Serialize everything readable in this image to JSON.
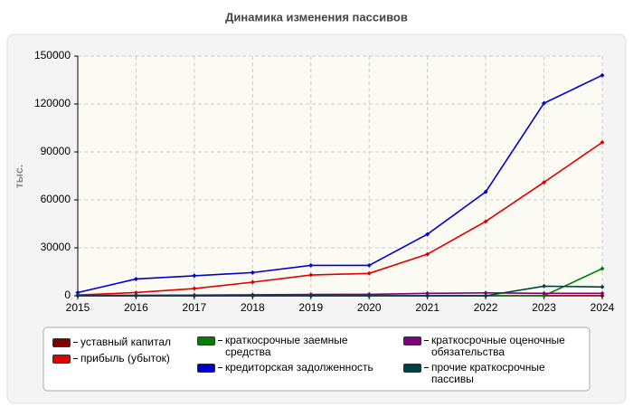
{
  "chart_data": {
    "type": "line",
    "title": "Динамика изменения пассивов",
    "y_label": "тыс.",
    "x": [
      2015,
      2016,
      2017,
      2018,
      2019,
      2020,
      2021,
      2022,
      2023,
      2024
    ],
    "xlim": [
      2015,
      2024
    ],
    "xticks": [
      2015,
      2016,
      2017,
      2018,
      2019,
      2020,
      2021,
      2022,
      2023,
      2024
    ],
    "ylim": [
      0,
      150000
    ],
    "yticks": [
      0,
      30000,
      60000,
      90000,
      120000,
      150000
    ],
    "grid": true,
    "series": [
      {
        "name": "уставный капитал",
        "color": "#800000",
        "values": [
          10,
          10,
          10,
          10,
          10,
          10,
          10,
          10,
          10,
          10
        ]
      },
      {
        "name": "прибыль (убыток)",
        "color": "#e00000",
        "values": [
          500,
          2000,
          4500,
          8500,
          13000,
          14000,
          26000,
          46500,
          71000,
          96000
        ]
      },
      {
        "name": "краткосрочные заемные средства",
        "color": "#008000",
        "values": [
          0,
          0,
          0,
          0,
          0,
          0,
          0,
          0,
          0,
          17000
        ]
      },
      {
        "name": "кредиторская задолженность",
        "color": "#0000cc",
        "values": [
          2000,
          10500,
          12500,
          14500,
          19000,
          19000,
          38500,
          65000,
          120500,
          138000
        ]
      },
      {
        "name": "краткосрочные оценочные обязательства",
        "color": "#800080",
        "values": [
          200,
          300,
          400,
          600,
          800,
          900,
          1500,
          1800,
          1500,
          1500
        ]
      },
      {
        "name": "прочие краткосрочные пассивы",
        "color": "#004040",
        "values": [
          0,
          0,
          0,
          0,
          0,
          0,
          0,
          0,
          6000,
          5500
        ]
      }
    ]
  }
}
